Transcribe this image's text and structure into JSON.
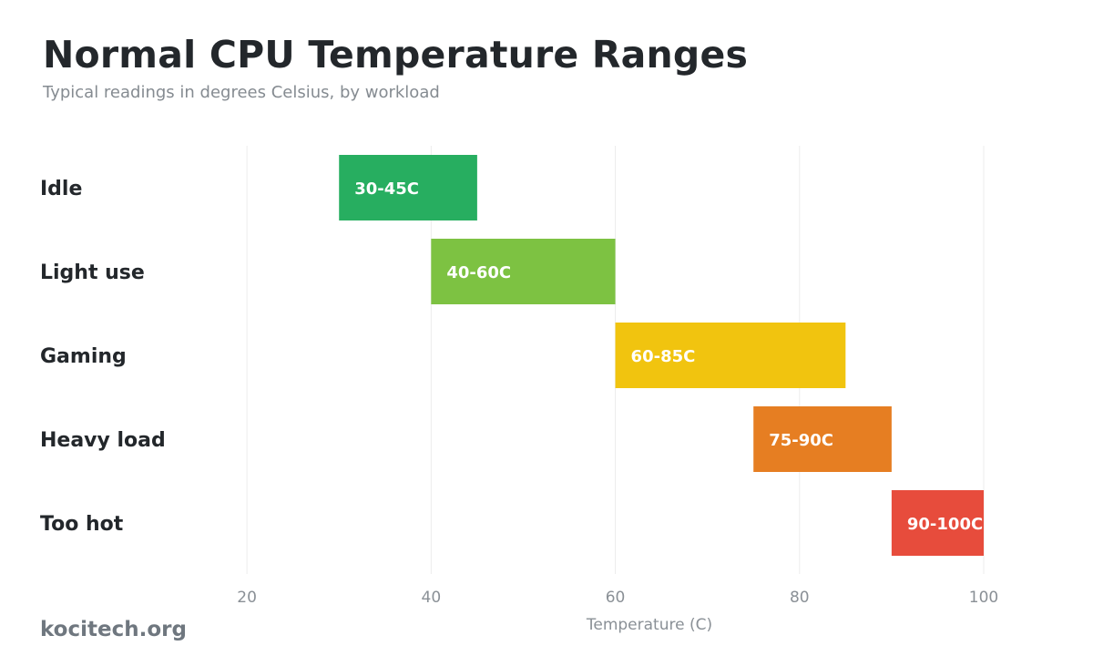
{
  "header": {
    "title": "Normal CPU Temperature Ranges",
    "subtitle": "Typical readings in degrees Celsius, by workload"
  },
  "footer": {
    "brand": "kocitech.org"
  },
  "chart_data": {
    "type": "bar",
    "orientation": "horizontal-range",
    "title": "Normal CPU Temperature Ranges",
    "subtitle": "Typical readings in degrees Celsius, by workload",
    "xlabel": "Temperature (C)",
    "ylabel": "",
    "xlim": [
      10,
      100
    ],
    "xticks": [
      20,
      40,
      60,
      80,
      100
    ],
    "grid": true,
    "legend": "none",
    "categories": [
      "Idle",
      "Light use",
      "Gaming",
      "Heavy load",
      "Too hot"
    ],
    "ranges": [
      {
        "category": "Idle",
        "start": 30,
        "end": 45,
        "label": "30-45C",
        "color": "#27ae60"
      },
      {
        "category": "Light use",
        "start": 40,
        "end": 60,
        "label": "40-60C",
        "color": "#7dc242"
      },
      {
        "category": "Gaming",
        "start": 60,
        "end": 85,
        "label": "60-85C",
        "color": "#f1c40f"
      },
      {
        "category": "Heavy load",
        "start": 75,
        "end": 90,
        "label": "75-90C",
        "color": "#e67e22"
      },
      {
        "category": "Too hot",
        "start": 90,
        "end": 100,
        "label": "90-100C",
        "color": "#e74c3c"
      }
    ]
  }
}
